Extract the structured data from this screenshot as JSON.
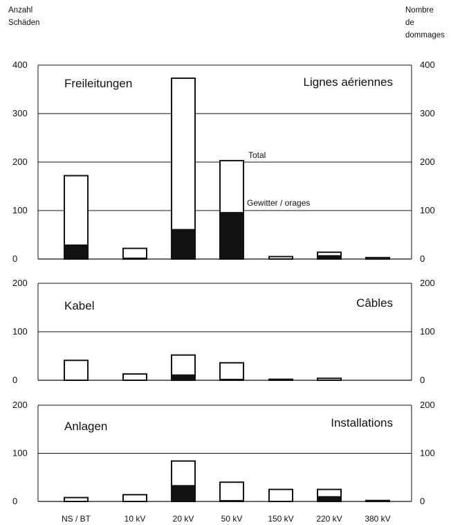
{
  "left_axis_label": [
    "Anzahl",
    "Schäden"
  ],
  "right_axis_label": [
    "Nombre",
    "de",
    "dommages"
  ],
  "colors": {
    "total_fill": "#ffffff",
    "storm_fill": "#111111",
    "stroke": "#111111"
  },
  "chart_data": [
    {
      "type": "bar",
      "panel_id": "overhead",
      "label_de": "Freileitungen",
      "label_fr": "Lignes aériennes",
      "annotations": {
        "total": "Total",
        "storm": "Gewitter / orages"
      },
      "categories": [
        "NS / BT",
        "10 kV",
        "20 kV",
        "50 kV",
        "150 kV",
        "220 kV",
        "380 kV"
      ],
      "series": [
        {
          "name": "Total",
          "values": [
            172,
            22,
            373,
            203,
            5,
            14,
            3
          ]
        },
        {
          "name": "Gewitter / orages",
          "values": [
            30,
            3,
            62,
            97,
            1,
            8,
            1
          ]
        }
      ],
      "ylim": [
        0,
        400
      ],
      "yticks": [
        0,
        100,
        200,
        300,
        400
      ],
      "grid": true
    },
    {
      "type": "bar",
      "panel_id": "cables",
      "label_de": "Kabel",
      "label_fr": "Câbles",
      "categories": [
        "NS / BT",
        "10 kV",
        "20 kV",
        "50 kV",
        "150 kV",
        "220 kV",
        "380 kV"
      ],
      "series": [
        {
          "name": "Total",
          "values": [
            41,
            13,
            52,
            36,
            2,
            4,
            0
          ]
        },
        {
          "name": "Gewitter / orages",
          "values": [
            1,
            1,
            12,
            3,
            0,
            0,
            0
          ]
        }
      ],
      "ylim": [
        0,
        200
      ],
      "yticks": [
        0,
        100,
        200
      ],
      "grid": true
    },
    {
      "type": "bar",
      "panel_id": "installations",
      "label_de": "Anlagen",
      "label_fr": "Installations",
      "categories": [
        "NS / BT",
        "10 kV",
        "20 kV",
        "50 kV",
        "150 kV",
        "220 kV",
        "380 kV"
      ],
      "series": [
        {
          "name": "Total",
          "values": [
            8,
            14,
            84,
            40,
            25,
            25,
            2
          ]
        },
        {
          "name": "Gewitter / orages",
          "values": [
            1,
            1,
            34,
            3,
            0,
            11,
            0
          ]
        }
      ],
      "ylim": [
        0,
        200
      ],
      "yticks": [
        0,
        100,
        200
      ],
      "grid": true
    }
  ]
}
